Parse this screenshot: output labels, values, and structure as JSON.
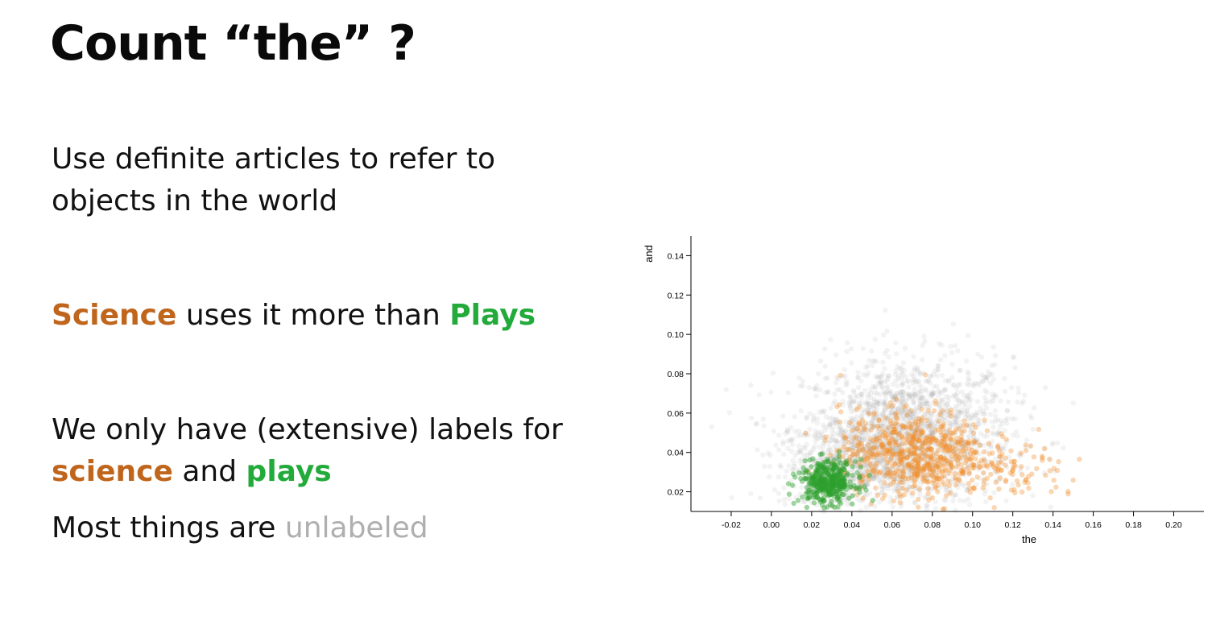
{
  "slide": {
    "title": "Count “the” ?",
    "line1": "Use definite articles to refer to objects in the world",
    "line2": {
      "science": "Science",
      "middle": " uses it more than ",
      "plays": "Plays"
    },
    "line3": {
      "lead": "We only have (extensive) labels for ",
      "science": "science",
      "middle": " and ",
      "plays": "plays"
    },
    "line4": {
      "lead": "Most things are ",
      "unlabeled": "unlabeled"
    }
  },
  "colors": {
    "science": "#c0651c",
    "plays": "#22aa3a",
    "unlabeled": "#b0aeae",
    "point_unlabeled": "#9a9a9a",
    "point_science": "#f28c28",
    "point_plays": "#2ca02c"
  },
  "chart_data": {
    "type": "scatter",
    "xlabel": "the",
    "ylabel": "and",
    "xlim": [
      -0.04,
      0.215
    ],
    "ylim": [
      0.01,
      0.15
    ],
    "xticks": [
      "-0.02",
      "0.00",
      "0.02",
      "0.04",
      "0.06",
      "0.08",
      "0.10",
      "0.12",
      "0.14",
      "0.16",
      "0.18",
      "0.20"
    ],
    "yticks": [
      "0.02",
      "0.04",
      "0.06",
      "0.08",
      "0.10",
      "0.12",
      "0.14"
    ],
    "grid": false,
    "legend": "none",
    "series": [
      {
        "color_key": "point_unlabeled",
        "opacity": 0.12,
        "clusters": [
          {
            "cx": 0.068,
            "cy": 0.05,
            "sx": 0.026,
            "sy": 0.019,
            "n": 1600
          },
          {
            "cx": 0.04,
            "cy": 0.035,
            "sx": 0.018,
            "sy": 0.012,
            "n": 500
          }
        ]
      },
      {
        "color_key": "point_science",
        "opacity": 0.35,
        "clusters": [
          {
            "cx": 0.07,
            "cy": 0.04,
            "sx": 0.018,
            "sy": 0.011,
            "n": 650
          },
          {
            "cx": 0.115,
            "cy": 0.03,
            "sx": 0.022,
            "sy": 0.008,
            "n": 120
          }
        ]
      },
      {
        "color_key": "point_plays",
        "opacity": 0.45,
        "clusters": [
          {
            "cx": 0.028,
            "cy": 0.025,
            "sx": 0.007,
            "sy": 0.0055,
            "n": 380
          }
        ]
      }
    ]
  }
}
